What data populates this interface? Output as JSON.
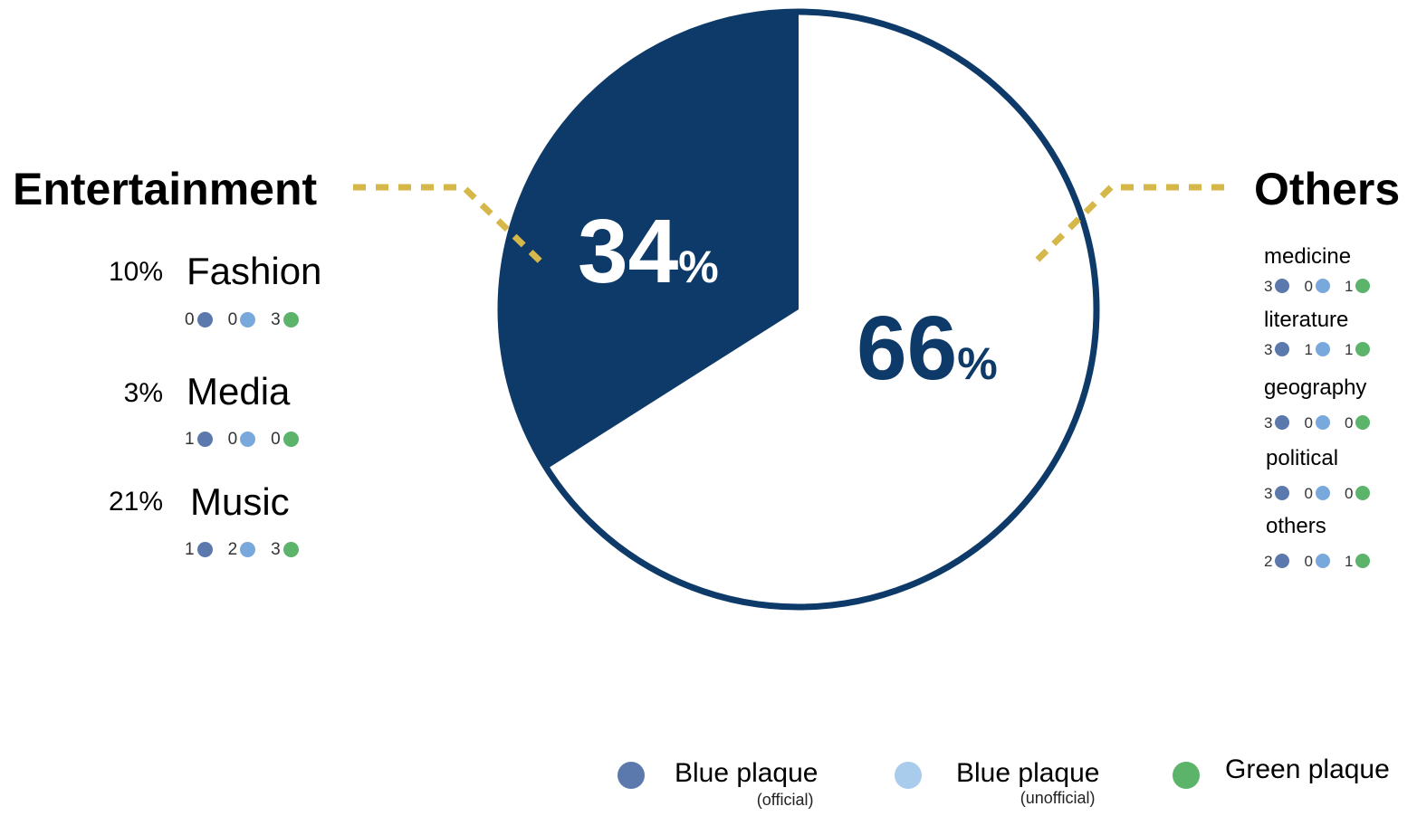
{
  "chart_data": {
    "type": "pie",
    "slices": [
      {
        "label": "Entertainment",
        "value": 34,
        "display": "34",
        "color": "#0d3a68"
      },
      {
        "label": "Others",
        "value": 66,
        "display": "66",
        "color": "#ffffff"
      }
    ],
    "percent_sign": "%",
    "outline_color": "#0d3a68",
    "leader_color": "#d6b84a",
    "groups": {
      "entertainment": {
        "title": "Entertainment",
        "categories": [
          {
            "pct": "10%",
            "name": "Fashion",
            "counts": [
              0,
              0,
              3
            ]
          },
          {
            "pct": "3%",
            "name": "Media",
            "counts": [
              1,
              0,
              0
            ]
          },
          {
            "pct": "21%",
            "name": "Music",
            "counts": [
              1,
              2,
              3
            ]
          }
        ]
      },
      "others": {
        "title": "Others",
        "categories": [
          {
            "name": "medicine",
            "counts": [
              3,
              0,
              1
            ]
          },
          {
            "name": "literature",
            "counts": [
              3,
              1,
              1
            ]
          },
          {
            "name": "geography",
            "counts": [
              3,
              0,
              0
            ]
          },
          {
            "name": "political",
            "counts": [
              3,
              0,
              0
            ]
          },
          {
            "name": "others",
            "counts": [
              2,
              0,
              1
            ]
          }
        ]
      }
    },
    "legend": [
      {
        "label": "Blue plaque",
        "sub": "(official)",
        "color": "#5b79ad"
      },
      {
        "label": "Blue plaque",
        "sub": "(unofficial)",
        "color": "#a9cbec"
      },
      {
        "label": "Green plaque",
        "sub": "",
        "color": "#5cb36a"
      }
    ],
    "count_colors": [
      "#5b79ad",
      "#79a9dc",
      "#5cb36a"
    ]
  }
}
